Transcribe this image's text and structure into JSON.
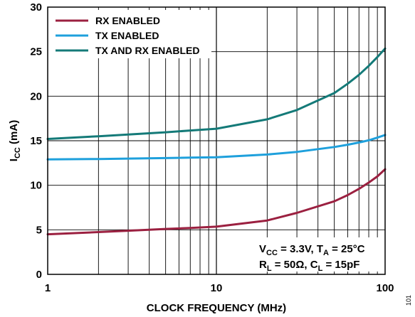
{
  "chart_data": {
    "type": "line",
    "xscale": "log",
    "xlim": [
      1,
      100
    ],
    "ylim": [
      0,
      30
    ],
    "x_ticks": [
      {
        "value": 1,
        "label": "1"
      },
      {
        "value": 10,
        "label": "10"
      },
      {
        "value": 100,
        "label": "100"
      }
    ],
    "y_ticks": [
      {
        "value": 0,
        "label": "0"
      },
      {
        "value": 5,
        "label": "5"
      },
      {
        "value": 10,
        "label": "10"
      },
      {
        "value": 15,
        "label": "15"
      },
      {
        "value": 20,
        "label": "20"
      },
      {
        "value": 25,
        "label": "25"
      },
      {
        "value": 30,
        "label": "30"
      }
    ],
    "xlabel": "CLOCK FREQUENCY (MHz)",
    "ylabel": {
      "main": "I",
      "sub": "CC",
      "rest": " (mA)"
    },
    "grid": true,
    "legend_position": "top-left",
    "series": [
      {
        "name": "RX ENABLED",
        "color": "#9b2040",
        "x": [
          1,
          2,
          3,
          5,
          7,
          10,
          20,
          30,
          50,
          60,
          70,
          80,
          90,
          100
        ],
        "y": [
          4.5,
          4.75,
          4.9,
          5.1,
          5.2,
          5.35,
          6.05,
          6.9,
          8.2,
          8.9,
          9.6,
          10.3,
          11.0,
          11.8
        ]
      },
      {
        "name": "TX ENABLED",
        "color": "#1ea0dc",
        "x": [
          1,
          2,
          3,
          5,
          7,
          10,
          20,
          30,
          50,
          60,
          70,
          80,
          90,
          100
        ],
        "y": [
          12.9,
          12.95,
          13.0,
          13.05,
          13.1,
          13.15,
          13.45,
          13.75,
          14.3,
          14.55,
          14.8,
          15.05,
          15.35,
          15.65
        ]
      },
      {
        "name": "TX AND RX ENABLED",
        "color": "#147a78",
        "x": [
          1,
          2,
          3,
          5,
          7,
          10,
          20,
          30,
          50,
          60,
          70,
          80,
          90,
          100
        ],
        "y": [
          15.2,
          15.5,
          15.7,
          15.95,
          16.15,
          16.35,
          17.4,
          18.45,
          20.35,
          21.4,
          22.4,
          23.4,
          24.4,
          25.35
        ]
      }
    ],
    "annotation": {
      "line1": [
        {
          "text": "V",
          "sub": false
        },
        {
          "text": "CC",
          "sub": true
        },
        {
          "text": " = 3.3V, T",
          "sub": false
        },
        {
          "text": "A",
          "sub": true
        },
        {
          "text": " = 25°C",
          "sub": false
        }
      ],
      "line2": [
        {
          "text": "R",
          "sub": false
        },
        {
          "text": "L",
          "sub": true
        },
        {
          "text": " = 50Ω, C",
          "sub": false
        },
        {
          "text": "L",
          "sub": true
        },
        {
          "text": " = 15pF",
          "sub": false
        }
      ]
    },
    "figure_id": "101"
  }
}
